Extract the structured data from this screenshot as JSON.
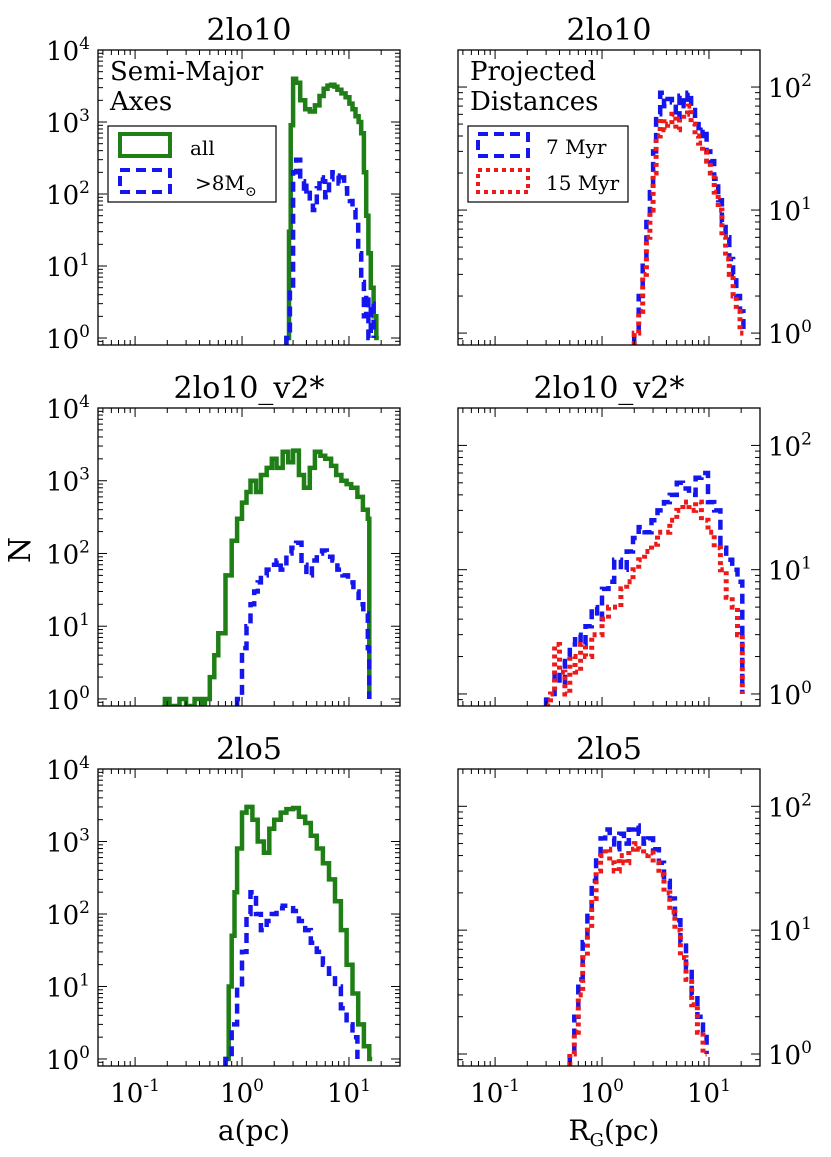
{
  "colors": {
    "green": "#1f7f16",
    "blue": "#1515ee",
    "red": "#ee1a1a",
    "axis": "#000000"
  },
  "figure": {
    "ylabel": "N",
    "xlabel_left": "a(pc)",
    "xlabel_right_main": "R",
    "xlabel_right_sub": "G",
    "xlabel_right_tail": "(pc)"
  },
  "x_ticks": [
    {
      "base": "10",
      "exp": "-1",
      "value": 0.1
    },
    {
      "base": "10",
      "exp": "0",
      "value": 1
    },
    {
      "base": "10",
      "exp": "1",
      "value": 10
    }
  ],
  "y_ticks_left": [
    {
      "base": "10",
      "exp": "0",
      "value": 1
    },
    {
      "base": "10",
      "exp": "1",
      "value": 10
    },
    {
      "base": "10",
      "exp": "2",
      "value": 100
    },
    {
      "base": "10",
      "exp": "3",
      "value": 1000
    },
    {
      "base": "10",
      "exp": "4",
      "value": 10000
    }
  ],
  "y_ticks_right": [
    {
      "base": "10",
      "exp": "0",
      "value": 1
    },
    {
      "base": "10",
      "exp": "1",
      "value": 10
    },
    {
      "base": "10",
      "exp": "2",
      "value": 100
    }
  ],
  "legends": {
    "left": {
      "header": [
        "Semi-Major",
        "Axes"
      ],
      "items": [
        {
          "label": "all",
          "color": "#1f7f16",
          "style": "solid"
        },
        {
          "label": ">8M",
          "sub": "⊙",
          "color": "#1515ee",
          "style": "dashed"
        }
      ]
    },
    "right": {
      "header": [
        "Projected",
        "Distances"
      ],
      "items": [
        {
          "label": "7 Myr",
          "color": "#1515ee",
          "style": "dashed"
        },
        {
          "label": "15 Myr",
          "color": "#ee1a1a",
          "style": "dotted"
        }
      ]
    }
  },
  "chart_data": [
    {
      "id": "p1",
      "type": "line",
      "title": "2lo10",
      "xscale": "log",
      "yscale": "log",
      "xlim": [
        0.045,
        30
      ],
      "ylim": [
        0.8,
        10000
      ],
      "ylabel": "N",
      "xlabel": "",
      "series": [
        {
          "name": "all",
          "color": "#1f7f16",
          "style": "solid",
          "x": [
            2.6,
            2.75,
            2.85,
            3.0,
            3.2,
            3.5,
            3.9,
            4.3,
            4.8,
            5.3,
            5.8,
            6.3,
            6.8,
            7.3,
            7.8,
            8.5,
            9.3,
            10.1,
            10.8,
            11.5,
            12.3,
            13.0,
            13.8,
            14.5,
            15.2,
            16.0,
            17.0,
            18.0,
            19.0
          ],
          "y": [
            1,
            30,
            900,
            4000,
            3500,
            2000,
            1500,
            1400,
            1700,
            2300,
            2900,
            3200,
            3300,
            3100,
            2800,
            2500,
            2200,
            1800,
            1500,
            1200,
            1000,
            700,
            200,
            50,
            15,
            5,
            2,
            1,
            1
          ]
        },
        {
          "name": ">8Msun",
          "color": "#1515ee",
          "style": "dashed",
          "x": [
            2.6,
            2.8,
            3.0,
            3.2,
            3.5,
            3.8,
            4.0,
            4.3,
            4.6,
            5.0,
            5.3,
            5.7,
            6.0,
            6.5,
            7.0,
            7.5,
            8.0,
            8.5,
            9.0,
            9.6,
            10.2,
            10.8,
            11.5,
            12.2,
            13.0,
            13.8,
            14.5,
            15.2,
            16.0,
            17.0
          ],
          "y": [
            1,
            5,
            200,
            300,
            150,
            100,
            130,
            80,
            60,
            120,
            170,
            150,
            90,
            160,
            200,
            180,
            140,
            170,
            120,
            90,
            80,
            60,
            40,
            15,
            6,
            2,
            4,
            1,
            3,
            1
          ]
        }
      ]
    },
    {
      "id": "p2",
      "type": "line",
      "title": "2lo10",
      "xscale": "log",
      "yscale": "log",
      "xlim": [
        0.045,
        30
      ],
      "ylim": [
        0.8,
        200
      ],
      "ylabel": "",
      "xlabel": "",
      "series": [
        {
          "name": "7 Myr",
          "color": "#1515ee",
          "style": "dashed",
          "x": [
            2.0,
            2.2,
            2.4,
            2.6,
            2.8,
            3.0,
            3.2,
            3.5,
            3.8,
            4.1,
            4.5,
            4.9,
            5.3,
            5.8,
            6.3,
            6.8,
            7.4,
            8.0,
            8.7,
            9.5,
            10.3,
            11.2,
            12.2,
            13.2,
            14.3,
            15.5,
            16.8,
            18.0,
            19.5,
            21.0
          ],
          "y": [
            1,
            2,
            4,
            8,
            14,
            30,
            60,
            90,
            70,
            80,
            75,
            55,
            85,
            70,
            90,
            65,
            50,
            40,
            45,
            30,
            25,
            18,
            12,
            8,
            6,
            4,
            3,
            2,
            1.5,
            1
          ]
        },
        {
          "name": "15 Myr",
          "color": "#ee1a1a",
          "style": "dotted",
          "x": [
            2.0,
            2.2,
            2.4,
            2.6,
            2.8,
            3.0,
            3.2,
            3.5,
            3.8,
            4.1,
            4.5,
            4.9,
            5.3,
            5.8,
            6.3,
            6.8,
            7.4,
            8.0,
            8.7,
            9.5,
            10.3,
            11.2,
            12.2,
            13.2,
            14.3,
            15.5,
            16.8,
            18.0,
            19.5,
            21.0
          ],
          "y": [
            1,
            1.5,
            3,
            6,
            10,
            20,
            40,
            55,
            45,
            50,
            60,
            45,
            55,
            60,
            70,
            50,
            40,
            35,
            30,
            25,
            20,
            14,
            10,
            6,
            4,
            3,
            2,
            1.5,
            1,
            1
          ]
        }
      ]
    },
    {
      "id": "p3",
      "type": "line",
      "title": "2lo10_v2*",
      "xscale": "log",
      "yscale": "log",
      "xlim": [
        0.045,
        30
      ],
      "ylim": [
        0.8,
        10000
      ],
      "ylabel": "N",
      "xlabel": "",
      "series": [
        {
          "name": "all",
          "color": "#1f7f16",
          "style": "solid",
          "x": [
            0.18,
            0.19,
            0.2,
            0.21,
            0.25,
            0.26,
            0.29,
            0.3,
            0.35,
            0.36,
            0.4,
            0.42,
            0.45,
            0.5,
            0.55,
            0.6,
            0.7,
            0.8,
            0.9,
            1.0,
            1.1,
            1.2,
            1.35,
            1.5,
            1.7,
            1.9,
            2.1,
            2.4,
            2.7,
            3.0,
            3.4,
            3.8,
            4.3,
            4.8,
            5.4,
            6.0,
            6.8,
            7.6,
            8.5,
            9.5,
            10.5,
            12.0,
            13.5,
            15.0,
            15.5
          ],
          "y": [
            0.8,
            1,
            1,
            0.8,
            0.8,
            1,
            1,
            0.8,
            0.8,
            1,
            1,
            0.8,
            1,
            2,
            4,
            8,
            50,
            150,
            300,
            500,
            700,
            1000,
            700,
            1200,
            1500,
            2000,
            1500,
            2500,
            1800,
            2600,
            1200,
            800,
            1500,
            2500,
            2200,
            2000,
            1600,
            1200,
            1000,
            900,
            800,
            600,
            400,
            300,
            1
          ]
        },
        {
          "name": ">8Msun",
          "color": "#1515ee",
          "style": "dashed",
          "x": [
            0.9,
            1.0,
            1.1,
            1.2,
            1.3,
            1.4,
            1.5,
            1.7,
            1.9,
            2.1,
            2.3,
            2.6,
            2.9,
            3.2,
            3.6,
            4.0,
            4.5,
            5.0,
            5.6,
            6.2,
            7.0,
            7.8,
            8.7,
            9.8,
            11.0,
            12.3,
            13.6,
            15.0,
            15.5
          ],
          "y": [
            1,
            5,
            10,
            20,
            30,
            40,
            50,
            60,
            70,
            80,
            60,
            100,
            120,
            140,
            70,
            50,
            80,
            100,
            110,
            90,
            80,
            60,
            50,
            40,
            30,
            20,
            15,
            5,
            1
          ]
        }
      ]
    },
    {
      "id": "p4",
      "type": "line",
      "title": "2lo10_v2*",
      "xscale": "log",
      "yscale": "log",
      "xlim": [
        0.045,
        30
      ],
      "ylim": [
        0.8,
        200
      ],
      "ylabel": "",
      "xlabel": "",
      "series": [
        {
          "name": "7 Myr",
          "color": "#1515ee",
          "style": "dashed",
          "x": [
            0.3,
            0.33,
            0.36,
            0.4,
            0.45,
            0.5,
            0.56,
            0.63,
            0.7,
            0.8,
            0.9,
            1.0,
            1.15,
            1.3,
            1.5,
            1.7,
            1.95,
            2.2,
            2.5,
            2.9,
            3.3,
            3.8,
            4.3,
            5.0,
            5.7,
            6.5,
            7.5,
            8.5,
            9.8,
            11.2,
            12.8,
            14.5,
            16.5,
            18.5,
            20.5
          ],
          "y": [
            0.9,
            1,
            1.5,
            1.2,
            2,
            2.5,
            3,
            2.5,
            3.5,
            5,
            4,
            7,
            8,
            12,
            10,
            14,
            18,
            22,
            20,
            25,
            30,
            35,
            40,
            50,
            45,
            40,
            55,
            60,
            35,
            30,
            15,
            12,
            10,
            8,
            1
          ]
        },
        {
          "name": "15 Myr",
          "color": "#ee1a1a",
          "style": "dotted",
          "x": [
            0.3,
            0.33,
            0.36,
            0.4,
            0.45,
            0.5,
            0.56,
            0.63,
            0.7,
            0.8,
            0.9,
            1.0,
            1.15,
            1.3,
            1.5,
            1.7,
            1.95,
            2.2,
            2.5,
            2.9,
            3.3,
            3.8,
            4.3,
            5.0,
            5.7,
            6.5,
            7.5,
            8.5,
            9.8,
            11.2,
            12.8,
            14.5,
            16.5,
            18.5,
            20.5
          ],
          "y": [
            0.8,
            1,
            2.5,
            1.5,
            1,
            2,
            1.5,
            2.5,
            2,
            3,
            3,
            4,
            5,
            5,
            7,
            8,
            10,
            12,
            14,
            16,
            20,
            20,
            25,
            30,
            35,
            30,
            35,
            25,
            20,
            15,
            10,
            6,
            5,
            3,
            1
          ]
        }
      ]
    },
    {
      "id": "p5",
      "type": "line",
      "title": "2lo5",
      "xscale": "log",
      "yscale": "log",
      "xlim": [
        0.045,
        30
      ],
      "ylim": [
        0.8,
        10000
      ],
      "ylabel": "",
      "xlabel": "a(pc)",
      "series": [
        {
          "name": "all",
          "color": "#1f7f16",
          "style": "solid",
          "x": [
            0.7,
            0.75,
            0.8,
            0.85,
            0.9,
            1.0,
            1.1,
            1.25,
            1.4,
            1.6,
            1.8,
            2.0,
            2.3,
            2.6,
            3.0,
            3.4,
            3.9,
            4.4,
            5.0,
            5.7,
            6.5,
            7.4,
            8.4,
            9.5,
            10.8,
            12.2,
            13.8,
            15.5,
            16.5
          ],
          "y": [
            1,
            10,
            50,
            200,
            800,
            2500,
            3000,
            2000,
            1000,
            700,
            1500,
            2000,
            2500,
            2800,
            2900,
            2200,
            1800,
            1200,
            800,
            500,
            300,
            150,
            60,
            20,
            8,
            3,
            1.5,
            1,
            1
          ]
        },
        {
          "name": ">8Msun",
          "color": "#1515ee",
          "style": "dashed",
          "x": [
            0.7,
            0.8,
            0.9,
            1.0,
            1.1,
            1.2,
            1.35,
            1.5,
            1.7,
            1.9,
            2.1,
            2.4,
            2.7,
            3.0,
            3.4,
            3.9,
            4.4,
            5.0,
            5.7,
            6.5,
            7.4,
            8.4,
            9.5,
            10.8,
            12.0
          ],
          "y": [
            1,
            3,
            10,
            30,
            100,
            200,
            100,
            60,
            80,
            100,
            120,
            130,
            120,
            110,
            80,
            60,
            40,
            30,
            20,
            15,
            10,
            5,
            3,
            2,
            1
          ]
        }
      ]
    },
    {
      "id": "p6",
      "type": "line",
      "title": "2lo5",
      "xscale": "log",
      "yscale": "log",
      "xlim": [
        0.045,
        30
      ],
      "ylim": [
        0.8,
        200
      ],
      "ylabel": "",
      "xlabel": "R_G(pc)",
      "series": [
        {
          "name": "7 Myr",
          "color": "#1515ee",
          "style": "dashed",
          "x": [
            0.5,
            0.55,
            0.6,
            0.66,
            0.73,
            0.8,
            0.88,
            0.97,
            1.07,
            1.18,
            1.3,
            1.45,
            1.6,
            1.78,
            2.0,
            2.2,
            2.45,
            2.7,
            3.0,
            3.4,
            3.8,
            4.3,
            4.8,
            5.4,
            6.1,
            6.9,
            7.8,
            8.8,
            9.5
          ],
          "y": [
            1,
            2,
            4,
            8,
            14,
            25,
            40,
            55,
            65,
            55,
            45,
            60,
            50,
            65,
            70,
            60,
            50,
            55,
            45,
            35,
            25,
            18,
            12,
            8,
            5,
            3,
            2,
            1.5,
            1
          ]
        },
        {
          "name": "15 Myr",
          "color": "#ee1a1a",
          "style": "dotted",
          "x": [
            0.5,
            0.55,
            0.6,
            0.66,
            0.73,
            0.8,
            0.88,
            0.97,
            1.07,
            1.18,
            1.3,
            1.45,
            1.6,
            1.78,
            2.0,
            2.2,
            2.45,
            2.7,
            3.0,
            3.4,
            3.8,
            4.3,
            4.8,
            5.4,
            6.1,
            6.9,
            7.8,
            8.8,
            9.5
          ],
          "y": [
            1,
            1.5,
            3,
            6,
            10,
            18,
            30,
            40,
            45,
            35,
            30,
            40,
            35,
            45,
            50,
            45,
            40,
            42,
            35,
            28,
            20,
            14,
            10,
            6,
            4,
            2.5,
            1.5,
            1,
            1
          ]
        }
      ]
    }
  ]
}
